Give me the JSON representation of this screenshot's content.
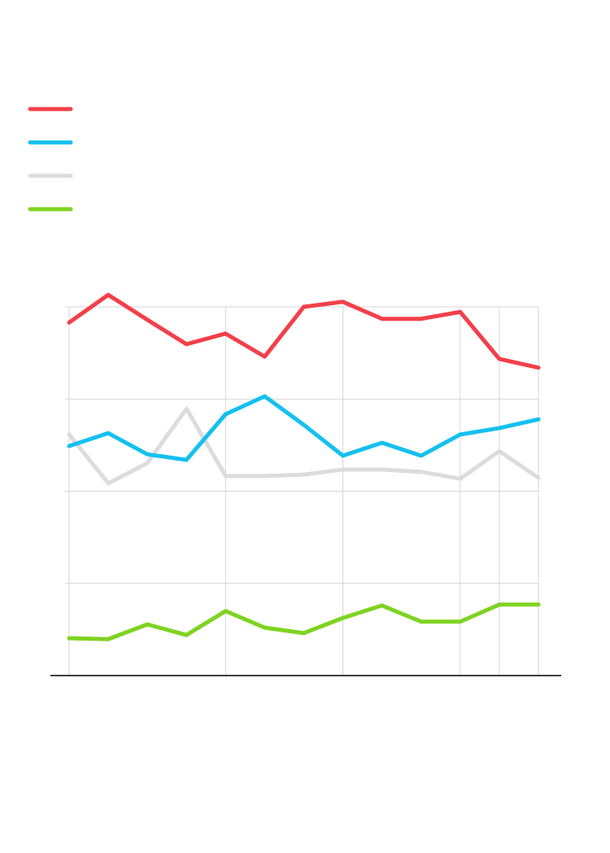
{
  "chart_data": {
    "type": "line",
    "x": [
      0,
      1,
      2,
      3,
      4,
      5,
      6,
      7,
      8,
      9,
      10,
      11,
      12
    ],
    "xlim": [
      0,
      12
    ],
    "xticks": [
      0,
      4,
      7,
      10,
      11,
      12
    ],
    "ylim": [
      0,
      85
    ],
    "yticks": [
      20,
      40,
      60,
      80
    ],
    "grid": true,
    "series": [
      {
        "color": "#f2404a",
        "values": [
          76.6,
          82.6,
          77.2,
          71.9,
          74.2,
          69.2,
          80.0,
          81.1,
          77.4,
          77.4,
          78.9,
          68.7,
          66.8
        ]
      },
      {
        "color": "#14c0f0",
        "values": [
          49.8,
          52.6,
          48.0,
          46.8,
          56.7,
          60.6,
          54.4,
          47.7,
          50.5,
          47.7,
          52.3,
          53.7,
          55.6
        ]
      },
      {
        "color": "#dcdcdc",
        "values": [
          52.3,
          41.7,
          46.1,
          57.9,
          43.3,
          43.3,
          43.6,
          44.7,
          44.7,
          44.2,
          42.7,
          48.7,
          42.9
        ]
      },
      {
        "color": "#7ed321",
        "values": [
          8.1,
          7.9,
          11.1,
          8.8,
          14.0,
          10.4,
          9.2,
          12.5,
          15.2,
          11.7,
          11.7,
          15.4,
          15.4
        ]
      }
    ]
  }
}
